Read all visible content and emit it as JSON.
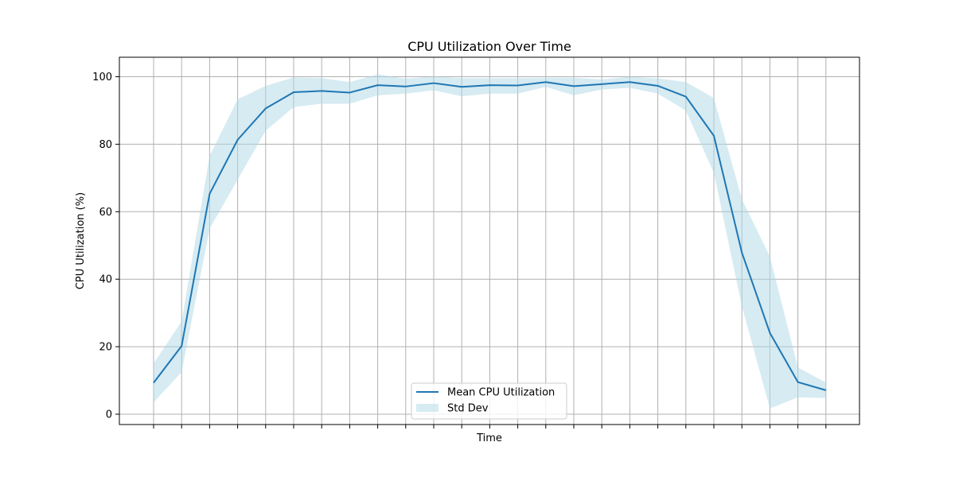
{
  "chart_data": {
    "type": "line",
    "title": "CPU Utilization Over Time",
    "xlabel": "Time",
    "ylabel": "CPU Utilization (%)",
    "ylim": [
      -3,
      106
    ],
    "yticks": [
      0,
      20,
      40,
      60,
      80,
      100
    ],
    "x_tick_labels_visible": false,
    "grid": true,
    "legend_position": "lower center",
    "colors": {
      "line": "#1f77b4",
      "band": "#add8e6"
    },
    "x": [
      0,
      1,
      2,
      3,
      4,
      5,
      6,
      7,
      8,
      9,
      10,
      11,
      12,
      13,
      14,
      15,
      16,
      17,
      18,
      19,
      20,
      21,
      22,
      23,
      24
    ],
    "series": [
      {
        "name": "Mean CPU Utilization",
        "kind": "line",
        "values": [
          9.3,
          20.2,
          65.3,
          81.3,
          90.6,
          95.4,
          95.8,
          95.3,
          97.5,
          97.1,
          98.1,
          97.0,
          97.5,
          97.4,
          98.4,
          97.2,
          97.8,
          98.4,
          97.3,
          94.1,
          82.5,
          47.9,
          24.1,
          9.5,
          7.1
        ]
      },
      {
        "name": "Std Dev",
        "kind": "band",
        "lower": [
          3.5,
          12.5,
          55.0,
          69.5,
          84.0,
          91.0,
          92.0,
          92.0,
          94.5,
          95.0,
          96.0,
          94.2,
          95.0,
          95.0,
          97.0,
          94.5,
          96.2,
          96.7,
          95.0,
          90.0,
          71.5,
          32.0,
          1.7,
          5.0,
          4.8
        ],
        "upper": [
          15.0,
          27.5,
          76.5,
          93.3,
          97.3,
          99.8,
          99.6,
          98.4,
          100.7,
          99.4,
          100.1,
          99.6,
          99.6,
          99.6,
          99.7,
          99.7,
          99.2,
          100.0,
          99.5,
          98.4,
          93.7,
          63.7,
          46.7,
          13.8,
          9.4
        ]
      }
    ]
  }
}
